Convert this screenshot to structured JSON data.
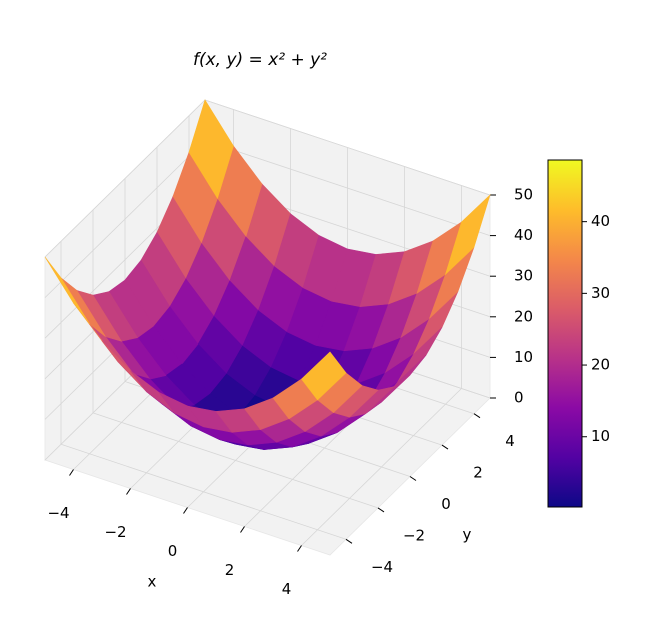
{
  "chart_data": {
    "type": "surface",
    "title": "f(x, y) = x² + y²",
    "xlabel": "x",
    "ylabel": "y",
    "x": [
      -5,
      -4,
      -3,
      -2,
      -1,
      0,
      1,
      2,
      3,
      4,
      5
    ],
    "y": [
      -5,
      -4,
      -3,
      -2,
      -1,
      0,
      1,
      2,
      3,
      4,
      5
    ],
    "z": [
      [
        50,
        41,
        34,
        29,
        26,
        25,
        26,
        29,
        34,
        41,
        50
      ],
      [
        41,
        32,
        25,
        20,
        17,
        16,
        17,
        20,
        25,
        32,
        41
      ],
      [
        34,
        25,
        18,
        13,
        10,
        9,
        10,
        13,
        18,
        25,
        34
      ],
      [
        29,
        20,
        13,
        8,
        5,
        4,
        5,
        8,
        13,
        20,
        29
      ],
      [
        26,
        17,
        10,
        5,
        2,
        1,
        2,
        5,
        10,
        17,
        26
      ],
      [
        25,
        16,
        9,
        4,
        1,
        0,
        1,
        4,
        9,
        16,
        25
      ],
      [
        26,
        17,
        10,
        5,
        2,
        1,
        2,
        5,
        10,
        17,
        26
      ],
      [
        29,
        20,
        13,
        8,
        5,
        4,
        5,
        8,
        13,
        20,
        29
      ],
      [
        34,
        25,
        18,
        13,
        10,
        9,
        10,
        13,
        18,
        25,
        34
      ],
      [
        41,
        32,
        25,
        20,
        17,
        16,
        17,
        20,
        25,
        32,
        41
      ],
      [
        50,
        41,
        34,
        29,
        26,
        25,
        26,
        29,
        34,
        41,
        50
      ]
    ],
    "colormap": "plasma",
    "xlim": [
      -5,
      5
    ],
    "ylim": [
      -5,
      5
    ],
    "zlim": [
      0,
      50
    ],
    "xticks": [
      {
        "value": -4,
        "label": "−4"
      },
      {
        "value": -2,
        "label": "−2"
      },
      0,
      2,
      4
    ],
    "yticks": [
      {
        "value": -4,
        "label": "−4"
      },
      {
        "value": -2,
        "label": "−2"
      },
      0,
      2,
      4
    ],
    "zticks": [
      0,
      10,
      20,
      30,
      40,
      50
    ],
    "grid": true,
    "colorbar": {
      "lim": [
        0.2,
        48.6
      ],
      "ticks": [
        10,
        20,
        30,
        40
      ]
    }
  }
}
